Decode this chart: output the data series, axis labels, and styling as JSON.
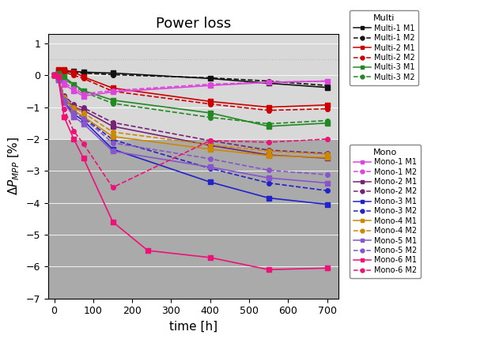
{
  "title": "Power loss",
  "xlabel": "time [h]",
  "ylabel": "$\\Delta P_{MPP}$ [%]",
  "xlim": [
    -15,
    730
  ],
  "ylim": [
    -7,
    1.3
  ],
  "yticks": [
    -7,
    -6,
    -5,
    -4,
    -3,
    -2,
    -1,
    0,
    1
  ],
  "xticks": [
    0,
    100,
    200,
    300,
    400,
    500,
    600,
    700
  ],
  "bg_upper_color": "#d8d8d8",
  "bg_lower_color": "#aaaaaa",
  "bg_threshold": -2.0,
  "hline_y": 0.5,
  "hline_color": "#bbbbbb",
  "series": [
    {
      "name": "Multi-1 M1",
      "group": "Multi",
      "color": "#111111",
      "linestyle": "-",
      "marker": "s",
      "x": [
        0,
        10,
        25,
        50,
        75,
        150,
        400,
        550,
        700
      ],
      "y": [
        0,
        0.15,
        0.15,
        0.12,
        0.1,
        0.07,
        -0.1,
        -0.25,
        -0.38
      ]
    },
    {
      "name": "Multi-1 M2",
      "group": "Multi",
      "color": "#111111",
      "linestyle": "--",
      "marker": "o",
      "x": [
        0,
        10,
        25,
        50,
        75,
        150,
        400,
        550,
        700
      ],
      "y": [
        0,
        0.13,
        0.13,
        0.09,
        0.07,
        0.02,
        -0.08,
        -0.18,
        -0.32
      ]
    },
    {
      "name": "Multi-2 M1",
      "group": "Multi",
      "color": "#cc0000",
      "linestyle": "-",
      "marker": "s",
      "x": [
        0,
        10,
        25,
        50,
        75,
        150,
        400,
        550,
        700
      ],
      "y": [
        0,
        0.18,
        0.18,
        0.1,
        -0.05,
        -0.4,
        -0.82,
        -1.0,
        -0.93
      ]
    },
    {
      "name": "Multi-2 M2",
      "group": "Multi",
      "color": "#cc0000",
      "linestyle": "--",
      "marker": "o",
      "x": [
        0,
        10,
        25,
        50,
        75,
        150,
        400,
        550,
        700
      ],
      "y": [
        0,
        0.1,
        0.1,
        0.0,
        -0.1,
        -0.5,
        -0.9,
        -1.1,
        -1.05
      ]
    },
    {
      "name": "Multi-3 M1",
      "group": "Multi",
      "color": "#228822",
      "linestyle": "-",
      "marker": "s",
      "x": [
        0,
        10,
        25,
        50,
        75,
        150,
        400,
        550,
        700
      ],
      "y": [
        0,
        0.05,
        -0.05,
        -0.28,
        -0.48,
        -0.78,
        -1.18,
        -1.6,
        -1.5
      ]
    },
    {
      "name": "Multi-3 M2",
      "group": "Multi",
      "color": "#228822",
      "linestyle": "--",
      "marker": "o",
      "x": [
        0,
        10,
        25,
        50,
        75,
        150,
        400,
        550,
        700
      ],
      "y": [
        0,
        0.0,
        -0.1,
        -0.33,
        -0.52,
        -0.88,
        -1.32,
        -1.52,
        -1.42
      ]
    },
    {
      "name": "Mono-1 M1",
      "group": "Mono",
      "color": "#dd44dd",
      "linestyle": "-",
      "marker": "s",
      "x": [
        0,
        10,
        25,
        50,
        75,
        150,
        400,
        550,
        700
      ],
      "y": [
        0,
        -0.05,
        -0.28,
        -0.48,
        -0.65,
        -0.52,
        -0.32,
        -0.22,
        -0.18
      ]
    },
    {
      "name": "Mono-1 M2",
      "group": "Mono",
      "color": "#dd44dd",
      "linestyle": "--",
      "marker": "o",
      "x": [
        0,
        10,
        25,
        50,
        75,
        150,
        400,
        550,
        700
      ],
      "y": [
        0,
        -0.05,
        -0.22,
        -0.42,
        -0.58,
        -0.48,
        -0.28,
        -0.22,
        -0.18
      ]
    },
    {
      "name": "Mono-2 M1",
      "group": "Mono",
      "color": "#772277",
      "linestyle": "-",
      "marker": "s",
      "x": [
        0,
        10,
        25,
        50,
        75,
        150,
        400,
        550,
        700
      ],
      "y": [
        0,
        -0.1,
        -0.7,
        -1.0,
        -1.1,
        -1.6,
        -2.2,
        -2.5,
        -2.6
      ]
    },
    {
      "name": "Mono-2 M2",
      "group": "Mono",
      "color": "#772277",
      "linestyle": "--",
      "marker": "o",
      "x": [
        0,
        10,
        25,
        50,
        75,
        150,
        400,
        550,
        700
      ],
      "y": [
        0,
        -0.1,
        -0.63,
        -0.92,
        -1.02,
        -1.48,
        -2.05,
        -2.35,
        -2.45
      ]
    },
    {
      "name": "Mono-3 M1",
      "group": "Mono",
      "color": "#2222cc",
      "linestyle": "-",
      "marker": "s",
      "x": [
        0,
        10,
        25,
        50,
        75,
        150,
        400,
        550,
        700
      ],
      "y": [
        0,
        -0.15,
        -0.82,
        -1.22,
        -1.42,
        -2.32,
        -3.35,
        -3.85,
        -4.05
      ]
    },
    {
      "name": "Mono-3 M2",
      "group": "Mono",
      "color": "#2222cc",
      "linestyle": "--",
      "marker": "o",
      "x": [
        0,
        10,
        25,
        50,
        75,
        150,
        400,
        550,
        700
      ],
      "y": [
        0,
        -0.1,
        -0.72,
        -1.12,
        -1.32,
        -2.02,
        -2.92,
        -3.38,
        -3.62
      ]
    },
    {
      "name": "Mono-4 M1",
      "group": "Mono",
      "color": "#cc8800",
      "linestyle": "-",
      "marker": "s",
      "x": [
        0,
        10,
        25,
        50,
        75,
        150,
        400,
        550,
        700
      ],
      "y": [
        0,
        -0.1,
        -0.75,
        -1.1,
        -1.3,
        -1.92,
        -2.32,
        -2.52,
        -2.58
      ]
    },
    {
      "name": "Mono-4 M2",
      "group": "Mono",
      "color": "#cc8800",
      "linestyle": "--",
      "marker": "o",
      "x": [
        0,
        10,
        25,
        50,
        75,
        150,
        400,
        550,
        700
      ],
      "y": [
        0,
        -0.1,
        -0.68,
        -1.02,
        -1.18,
        -1.78,
        -2.18,
        -2.38,
        -2.48
      ]
    },
    {
      "name": "Mono-5 M1",
      "group": "Mono",
      "color": "#8855cc",
      "linestyle": "-",
      "marker": "s",
      "x": [
        0,
        10,
        25,
        50,
        75,
        150,
        400,
        550,
        700
      ],
      "y": [
        0,
        -0.15,
        -0.85,
        -1.3,
        -1.52,
        -2.38,
        -2.88,
        -3.22,
        -3.38
      ]
    },
    {
      "name": "Mono-5 M2",
      "group": "Mono",
      "color": "#8855cc",
      "linestyle": "--",
      "marker": "o",
      "x": [
        0,
        10,
        25,
        50,
        75,
        150,
        400,
        550,
        700
      ],
      "y": [
        0,
        -0.1,
        -0.75,
        -1.15,
        -1.35,
        -2.12,
        -2.62,
        -2.98,
        -3.12
      ]
    },
    {
      "name": "Mono-6 M1",
      "group": "Mono",
      "color": "#ee1177",
      "linestyle": "-",
      "marker": "s",
      "x": [
        0,
        10,
        25,
        50,
        75,
        150,
        240,
        400,
        550,
        700
      ],
      "y": [
        0,
        -0.05,
        -1.3,
        -2.0,
        -2.6,
        -4.6,
        -5.5,
        -5.72,
        -6.1,
        -6.05
      ]
    },
    {
      "name": "Mono-6 M2",
      "group": "Mono",
      "color": "#ee1177",
      "linestyle": "--",
      "marker": "o",
      "x": [
        0,
        10,
        25,
        50,
        75,
        150,
        400,
        550,
        700
      ],
      "y": [
        0,
        -0.05,
        -1.05,
        -1.75,
        -2.15,
        -3.52,
        -2.05,
        -2.1,
        -2.0
      ]
    }
  ],
  "legend_groups": {
    "Multi": [
      "Multi-1 M1",
      "Multi-1 M2",
      "Multi-2 M1",
      "Multi-2 M2",
      "Multi-3 M1",
      "Multi-3 M2"
    ],
    "Mono": [
      "Mono-1 M1",
      "Mono-1 M2",
      "Mono-2 M1",
      "Mono-2 M2",
      "Mono-3 M1",
      "Mono-3 M2",
      "Mono-4 M1",
      "Mono-4 M2",
      "Mono-5 M1",
      "Mono-5 M2",
      "Mono-6 M1",
      "Mono-6 M2"
    ]
  }
}
